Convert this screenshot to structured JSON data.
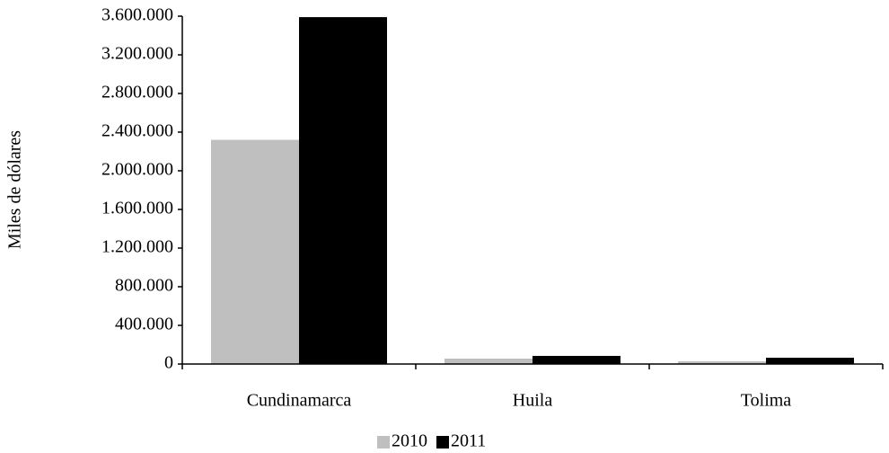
{
  "chart_data": {
    "type": "bar",
    "y_label": "Miles de dólares",
    "categories": [
      "Cundinamarca",
      "Huila",
      "Tolima"
    ],
    "series": [
      {
        "name": "2010",
        "color": "#bfbfbf",
        "values": [
          2320000,
          56000,
          28000
        ]
      },
      {
        "name": "2011",
        "color": "#000000",
        "values": [
          3590000,
          84000,
          65000
        ]
      }
    ],
    "ylim": [
      0,
      3600000
    ],
    "yticks": [
      0,
      {
        "value": 400000,
        "label": "400.000"
      },
      {
        "value": 800000,
        "label": "800.000"
      },
      {
        "value": 1200000,
        "label": "1.200.000"
      },
      {
        "value": 1600000,
        "label": "1.600.000"
      },
      {
        "value": 2000000,
        "label": "2.000.000"
      },
      {
        "value": 2400000,
        "label": "2.400.000"
      },
      {
        "value": 2800000,
        "label": "2.800.000"
      },
      {
        "value": 3200000,
        "label": "3.200.000"
      },
      {
        "value": 3600000,
        "label": "3.600.000"
      }
    ],
    "grid": false,
    "legend": "bottom"
  }
}
